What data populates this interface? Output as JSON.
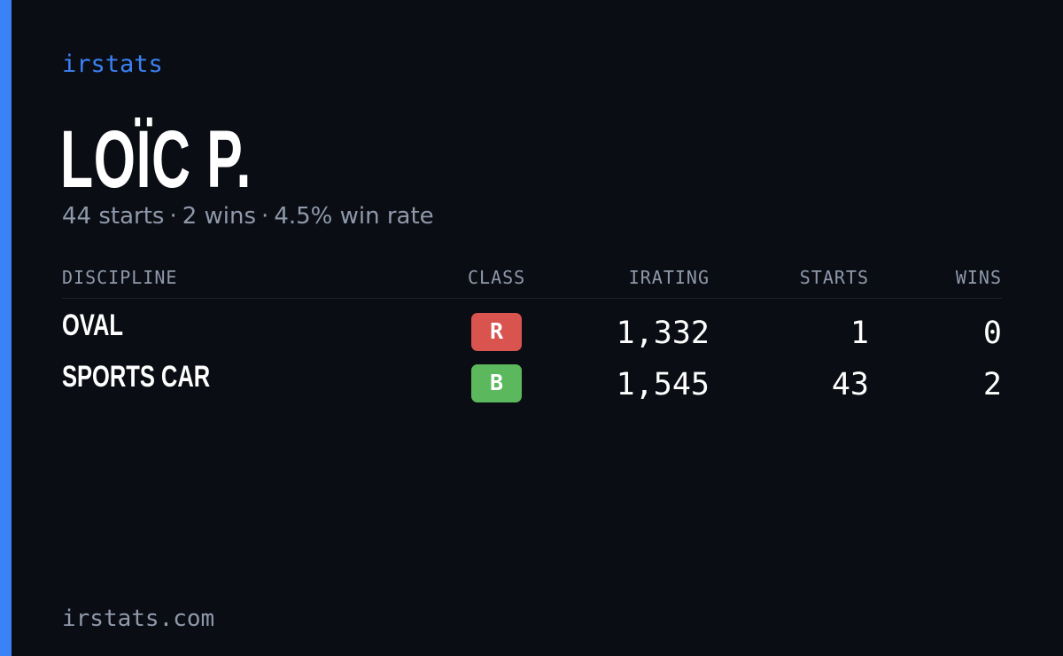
{
  "header": {
    "brand": "irstats",
    "player_name": "LOÏC P.",
    "summary": {
      "starts": "44 starts",
      "wins": "2 wins",
      "win_rate": "4.5% win rate",
      "separator": "·"
    }
  },
  "table": {
    "columns": {
      "discipline": "DISCIPLINE",
      "class": "CLASS",
      "irating": "IRATING",
      "starts": "STARTS",
      "wins": "WINS"
    },
    "rows": [
      {
        "discipline": "OVAL",
        "class": "R",
        "class_color": "#d9534f",
        "irating": "1,332",
        "starts": "1",
        "wins": "0"
      },
      {
        "discipline": "SPORTS CAR",
        "class": "B",
        "class_color": "#5cb85c",
        "irating": "1,545",
        "starts": "43",
        "wins": "2"
      }
    ]
  },
  "footer": {
    "site": "irstats.com"
  },
  "colors": {
    "accent": "#3b82f6",
    "background": "#0a0d14",
    "muted_text": "#8f99aa"
  }
}
